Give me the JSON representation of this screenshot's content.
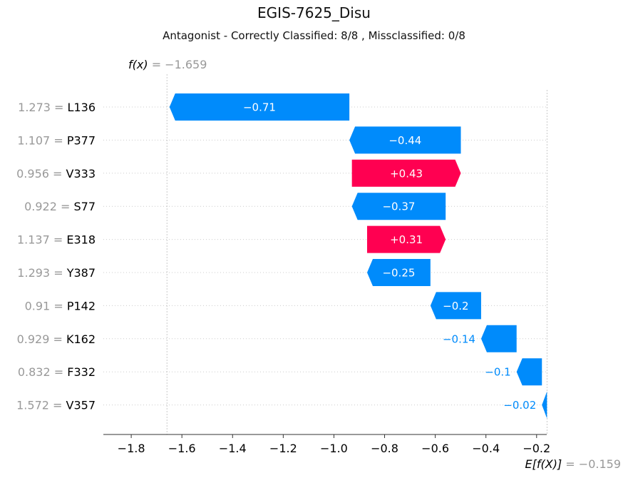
{
  "chart_data": {
    "type": "waterfall",
    "title": "EGIS-7625_Disu",
    "subtitle": "Antagonist - Correctly Classified: 8/8 , Missclassified: 0/8",
    "fx_label": "f(x)",
    "fx_value_text": "= −1.659",
    "fx": -1.659,
    "base_label": "E[f(X)]",
    "base_value_text": "= −0.159",
    "base_value": -0.159,
    "xlim": [
      -1.91,
      -0.16
    ],
    "x_ticks": [
      -1.8,
      -1.6,
      -1.4,
      -1.2,
      -1.0,
      -0.8,
      -0.6,
      -0.4,
      -0.2
    ],
    "x_tick_labels": [
      "−1.8",
      "−1.6",
      "−1.4",
      "−1.2",
      "−1.0",
      "−0.8",
      "−0.6",
      "−0.4",
      "−0.2"
    ],
    "colors": {
      "positive": "#ff0051",
      "negative": "#008bfb",
      "muted_text": "#999999"
    },
    "features": [
      {
        "value": "1.273",
        "name": "L136",
        "contribution": -0.71,
        "label": "−0.71"
      },
      {
        "value": "1.107",
        "name": "P377",
        "contribution": -0.44,
        "label": "−0.44"
      },
      {
        "value": "0.956",
        "name": "V333",
        "contribution": 0.43,
        "label": "+0.43"
      },
      {
        "value": "0.922",
        "name": "S77",
        "contribution": -0.37,
        "label": "−0.37"
      },
      {
        "value": "1.137",
        "name": "E318",
        "contribution": 0.31,
        "label": "+0.31"
      },
      {
        "value": "1.293",
        "name": "Y387",
        "contribution": -0.25,
        "label": "−0.25"
      },
      {
        "value": "0.91",
        "name": "P142",
        "contribution": -0.2,
        "label": "−0.2"
      },
      {
        "value": "0.929",
        "name": "K162",
        "contribution": -0.14,
        "label": "−0.14"
      },
      {
        "value": "0.832",
        "name": "F332",
        "contribution": -0.1,
        "label": "−0.1"
      },
      {
        "value": "1.572",
        "name": "V357",
        "contribution": -0.02,
        "label": "−0.02"
      }
    ]
  }
}
